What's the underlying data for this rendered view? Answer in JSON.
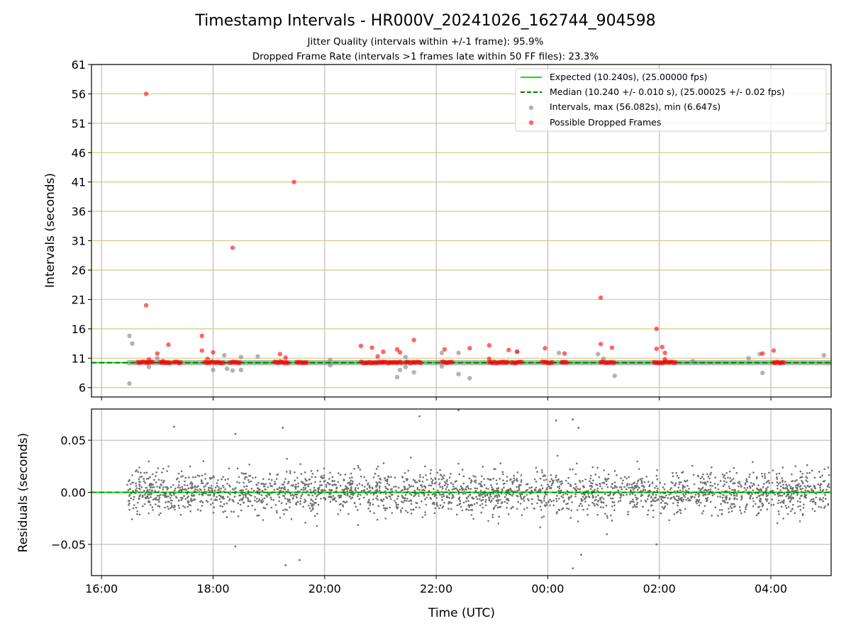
{
  "chart_data": [
    {
      "type": "scatter",
      "title": "Timestamp Intervals - HR000V_20241026_162744_904598",
      "subtitle_1": "Jitter Quality (intervals within +/-1 frame): 95.9%",
      "subtitle_2": "Dropped Frame Rate (intervals >1 frames late within 50 FF files): 23.3%",
      "ylabel": "Intervals (seconds)",
      "xlim_hours": [
        15.82,
        29.08
      ],
      "ylim": [
        4.4,
        61
      ],
      "yticks": [
        6,
        11,
        16,
        21,
        26,
        31,
        36,
        41,
        46,
        51,
        56,
        61
      ],
      "ytick_labels": [
        "6",
        "11",
        "16",
        "21",
        "26",
        "31",
        "36",
        "41",
        "46",
        "51",
        "56",
        "61"
      ],
      "xticks_hours": [
        16,
        18,
        20,
        22,
        24,
        26,
        28
      ],
      "grid": "on",
      "legend_position": "top-right",
      "expected_value": 10.24,
      "median_value": 10.24,
      "data_start_hour": 16.46,
      "data_end_hour": 29.08,
      "colors": {
        "expected": "#00ee00",
        "median": "#007700",
        "intervals": "#808080",
        "dropped": "#ff0000",
        "hgrid": "#d8c77f",
        "vgrid": "#b0b0b0"
      },
      "legend": [
        {
          "label": "Expected (10.240s), (25.00000 fps)",
          "kind": "solid-line",
          "color": "#00ee00"
        },
        {
          "label": "Median (10.240 +/- 0.010 s), (25.00025 +/- 0.02 fps)",
          "kind": "dashed-line",
          "color": "#007700"
        },
        {
          "label": "Intervals, max (56.082s), min (6.647s)",
          "kind": "marker",
          "color": "#808080"
        },
        {
          "label": "Possible Dropped Frames",
          "kind": "marker",
          "color": "#ff0000"
        }
      ],
      "intervals_outliers": [
        [
          16.5,
          14.8
        ],
        [
          16.55,
          13.5
        ],
        [
          16.5,
          6.7
        ],
        [
          16.85,
          9.5
        ],
        [
          17.0,
          11.0
        ],
        [
          17.2,
          10.2
        ],
        [
          18.0,
          9.0
        ],
        [
          18.2,
          11.5
        ],
        [
          18.25,
          9.2
        ],
        [
          18.35,
          8.9
        ],
        [
          18.5,
          9.0
        ],
        [
          18.5,
          11.2
        ],
        [
          18.8,
          11.3
        ],
        [
          19.2,
          10.5
        ],
        [
          20.1,
          10.7
        ],
        [
          20.1,
          9.8
        ],
        [
          21.3,
          7.8
        ],
        [
          21.35,
          9.0
        ],
        [
          21.45,
          9.5
        ],
        [
          21.45,
          11.2
        ],
        [
          21.6,
          8.6
        ],
        [
          22.1,
          9.6
        ],
        [
          22.1,
          11.9
        ],
        [
          22.4,
          8.3
        ],
        [
          22.4,
          11.9
        ],
        [
          22.6,
          7.6
        ],
        [
          23.2,
          10.4
        ],
        [
          23.45,
          12.1
        ],
        [
          24.2,
          11.9
        ],
        [
          24.9,
          11.7
        ],
        [
          25.0,
          10.9
        ],
        [
          25.2,
          8.0
        ],
        [
          26.6,
          10.5
        ],
        [
          27.6,
          11.0
        ],
        [
          27.85,
          8.5
        ],
        [
          27.8,
          11.7
        ],
        [
          28.95,
          11.5
        ]
      ],
      "dropped_frames": [
        [
          16.8,
          56.0
        ],
        [
          16.8,
          20.0
        ],
        [
          16.85,
          10.8
        ],
        [
          17.0,
          11.8
        ],
        [
          17.1,
          10.5
        ],
        [
          17.2,
          13.3
        ],
        [
          17.8,
          14.8
        ],
        [
          17.8,
          12.3
        ],
        [
          17.9,
          10.9
        ],
        [
          18.0,
          12.0
        ],
        [
          18.35,
          29.8
        ],
        [
          19.2,
          11.7
        ],
        [
          19.3,
          11.1
        ],
        [
          19.45,
          41.0
        ],
        [
          20.65,
          13.1
        ],
        [
          20.85,
          12.8
        ],
        [
          20.95,
          11.3
        ],
        [
          21.05,
          12.1
        ],
        [
          21.3,
          12.5
        ],
        [
          21.35,
          12.0
        ],
        [
          21.6,
          14.1
        ],
        [
          22.15,
          12.5
        ],
        [
          22.6,
          12.7
        ],
        [
          22.95,
          13.2
        ],
        [
          22.95,
          10.9
        ],
        [
          23.3,
          12.4
        ],
        [
          23.45,
          12.1
        ],
        [
          23.95,
          12.7
        ],
        [
          24.3,
          11.8
        ],
        [
          24.95,
          21.3
        ],
        [
          24.95,
          13.4
        ],
        [
          25.15,
          12.8
        ],
        [
          25.95,
          16.0
        ],
        [
          25.95,
          12.6
        ],
        [
          26.05,
          12.9
        ],
        [
          26.1,
          11.9
        ],
        [
          26.1,
          10.8
        ],
        [
          28.05,
          12.3
        ],
        [
          27.85,
          11.8
        ]
      ],
      "dropped_clusters": [
        [
          16.65,
          16.95
        ],
        [
          17.05,
          17.25
        ],
        [
          17.3,
          17.45
        ],
        [
          17.85,
          18.2
        ],
        [
          18.3,
          18.5
        ],
        [
          19.1,
          19.35
        ],
        [
          19.5,
          19.7
        ],
        [
          20.65,
          21.05
        ],
        [
          21.05,
          21.4
        ],
        [
          21.45,
          21.75
        ],
        [
          22.1,
          22.3
        ],
        [
          22.95,
          23.3
        ],
        [
          23.35,
          23.55
        ],
        [
          23.9,
          24.1
        ],
        [
          24.25,
          24.35
        ],
        [
          24.95,
          25.2
        ],
        [
          25.9,
          26.3
        ],
        [
          28.05,
          28.25
        ]
      ]
    },
    {
      "type": "scatter",
      "ylabel": "Residuals (seconds)",
      "xlabel": "Time (UTC)",
      "xlim_hours": [
        15.82,
        29.08
      ],
      "ylim": [
        -0.08,
        0.08
      ],
      "yticks": [
        0.05,
        0.0,
        -0.05
      ],
      "ytick_labels": [
        "0.05",
        "0.00",
        "−0.05"
      ],
      "xticks_hours": [
        16,
        18,
        20,
        22,
        24,
        26,
        28
      ],
      "xtick_labels": [
        "16:00",
        "18:00",
        "20:00",
        "22:00",
        "00:00",
        "02:00",
        "04:00"
      ],
      "grid": "on",
      "spread_std": 0.01,
      "data_start_hour": 16.46,
      "data_end_hour": 29.08,
      "colors": {
        "points": "#707070",
        "zero_line": "#00ee00",
        "grid": "#b0b0b0"
      },
      "notable_points": [
        [
          17.3,
          0.063
        ],
        [
          18.4,
          0.056
        ],
        [
          18.4,
          -0.052
        ],
        [
          19.25,
          0.062
        ],
        [
          19.3,
          -0.07
        ],
        [
          19.55,
          -0.065
        ],
        [
          21.7,
          0.073
        ],
        [
          22.4,
          0.079
        ],
        [
          24.15,
          0.069
        ],
        [
          24.45,
          0.07
        ],
        [
          24.55,
          0.062
        ],
        [
          24.45,
          -0.073
        ],
        [
          24.6,
          -0.06
        ],
        [
          25.95,
          -0.05
        ]
      ]
    }
  ]
}
